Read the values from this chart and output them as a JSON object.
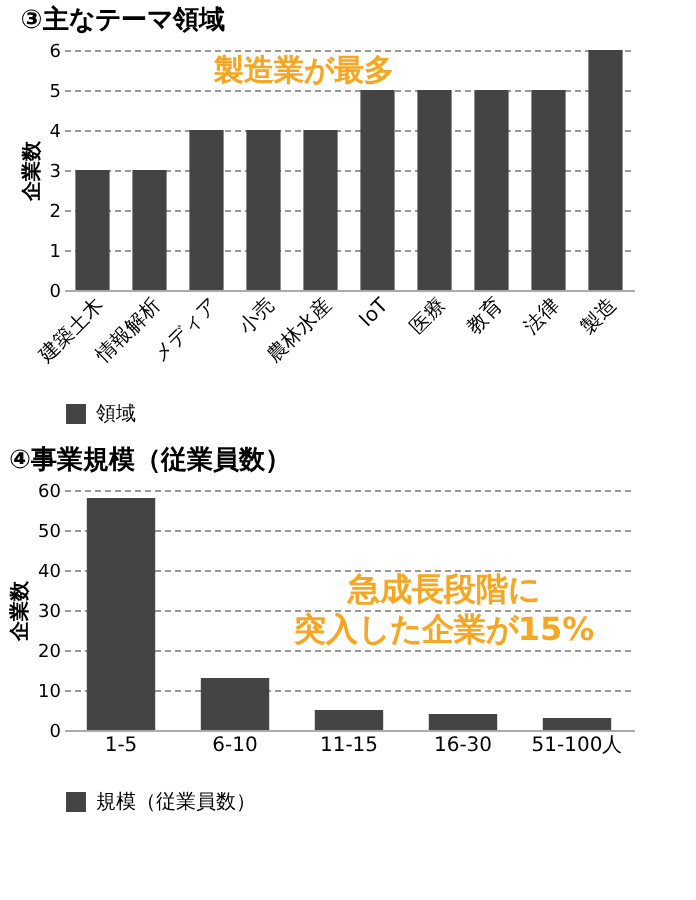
{
  "chart_data": [
    {
      "type": "bar",
      "title": "③主なテーマ領域",
      "ylabel": "企業数",
      "categories": [
        "建築土木",
        "情報解析",
        "メディア",
        "小売",
        "農林水産",
        "IoT",
        "医療",
        "教育",
        "法律",
        "製造"
      ],
      "series": [
        {
          "name": "領域",
          "color": "#444444",
          "values": [
            3,
            3,
            4,
            4,
            4,
            5,
            5,
            5,
            5,
            6
          ]
        }
      ],
      "ylim": [
        0,
        6
      ],
      "yticks": [
        0,
        1,
        2,
        3,
        4,
        5,
        6
      ],
      "grid": "y",
      "legend": "bottom",
      "annotations": [
        "製造業が最多"
      ]
    },
    {
      "type": "bar",
      "title": "④事業規模（従業員数）",
      "ylabel": "企業数",
      "categories": [
        "1-5",
        "6-10",
        "11-15",
        "16-30",
        "51-100人"
      ],
      "series": [
        {
          "name": "規模（従業員数）",
          "color": "#444444",
          "values": [
            58,
            13,
            5,
            4,
            3
          ]
        }
      ],
      "ylim": [
        0,
        60
      ],
      "yticks": [
        0,
        10,
        20,
        30,
        40,
        50,
        60
      ],
      "grid": "y",
      "legend": "bottom",
      "annotations": [
        "急成長段階に",
        "突入した企業が15%"
      ]
    }
  ]
}
